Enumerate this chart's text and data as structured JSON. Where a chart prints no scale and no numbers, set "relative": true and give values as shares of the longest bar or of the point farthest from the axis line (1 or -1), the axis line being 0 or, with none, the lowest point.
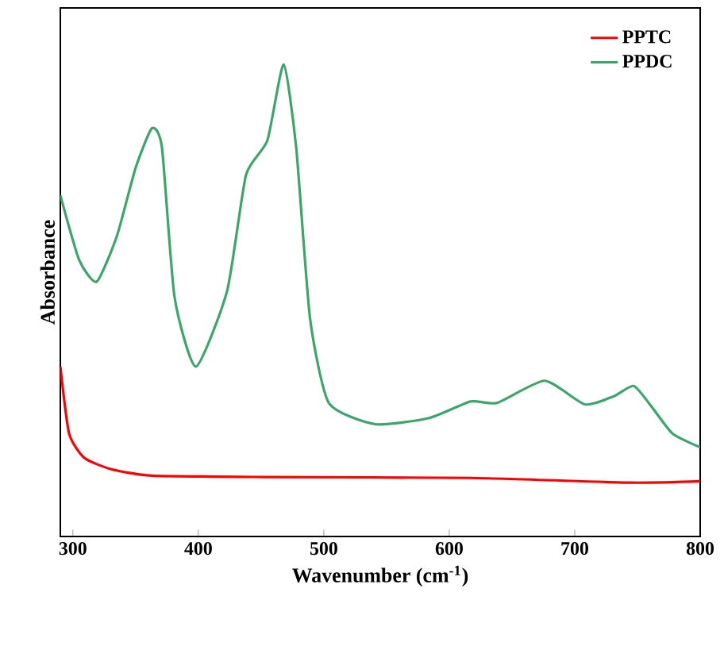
{
  "chart_data": {
    "type": "line",
    "relative": true,
    "xlabel": "Wavenumber (cm$^{-1}$)",
    "ylabel": "Absorbance",
    "xlim": [
      290,
      800
    ],
    "xticks": [
      300,
      400,
      500,
      600,
      700,
      800
    ],
    "legend": "top right",
    "series": [
      {
        "name": "PPTC",
        "color": "#ff0000",
        "x": [
          290,
          297,
          309,
          330,
          363,
          453,
          617,
          744,
          800
        ],
        "values": [
          0.36,
          0.218,
          0.167,
          0.143,
          0.129,
          0.126,
          0.124,
          0.114,
          0.117
        ]
      },
      {
        "name": "PPDC",
        "color": "#3aa66a",
        "x": [
          290,
          305,
          319,
          335,
          350,
          363,
          371,
          381,
          398,
          423,
          438,
          455,
          468,
          478,
          489,
          504,
          541,
          584,
          617,
          638,
          676,
          708,
          731,
          747,
          761,
          778,
          800
        ],
        "values": [
          0.723,
          0.586,
          0.54,
          0.636,
          0.781,
          0.865,
          0.824,
          0.508,
          0.36,
          0.521,
          0.766,
          0.839,
          1.0,
          0.824,
          0.463,
          0.283,
          0.238,
          0.251,
          0.286,
          0.283,
          0.33,
          0.28,
          0.297,
          0.319,
          0.276,
          0.218,
          0.189
        ]
      }
    ]
  }
}
